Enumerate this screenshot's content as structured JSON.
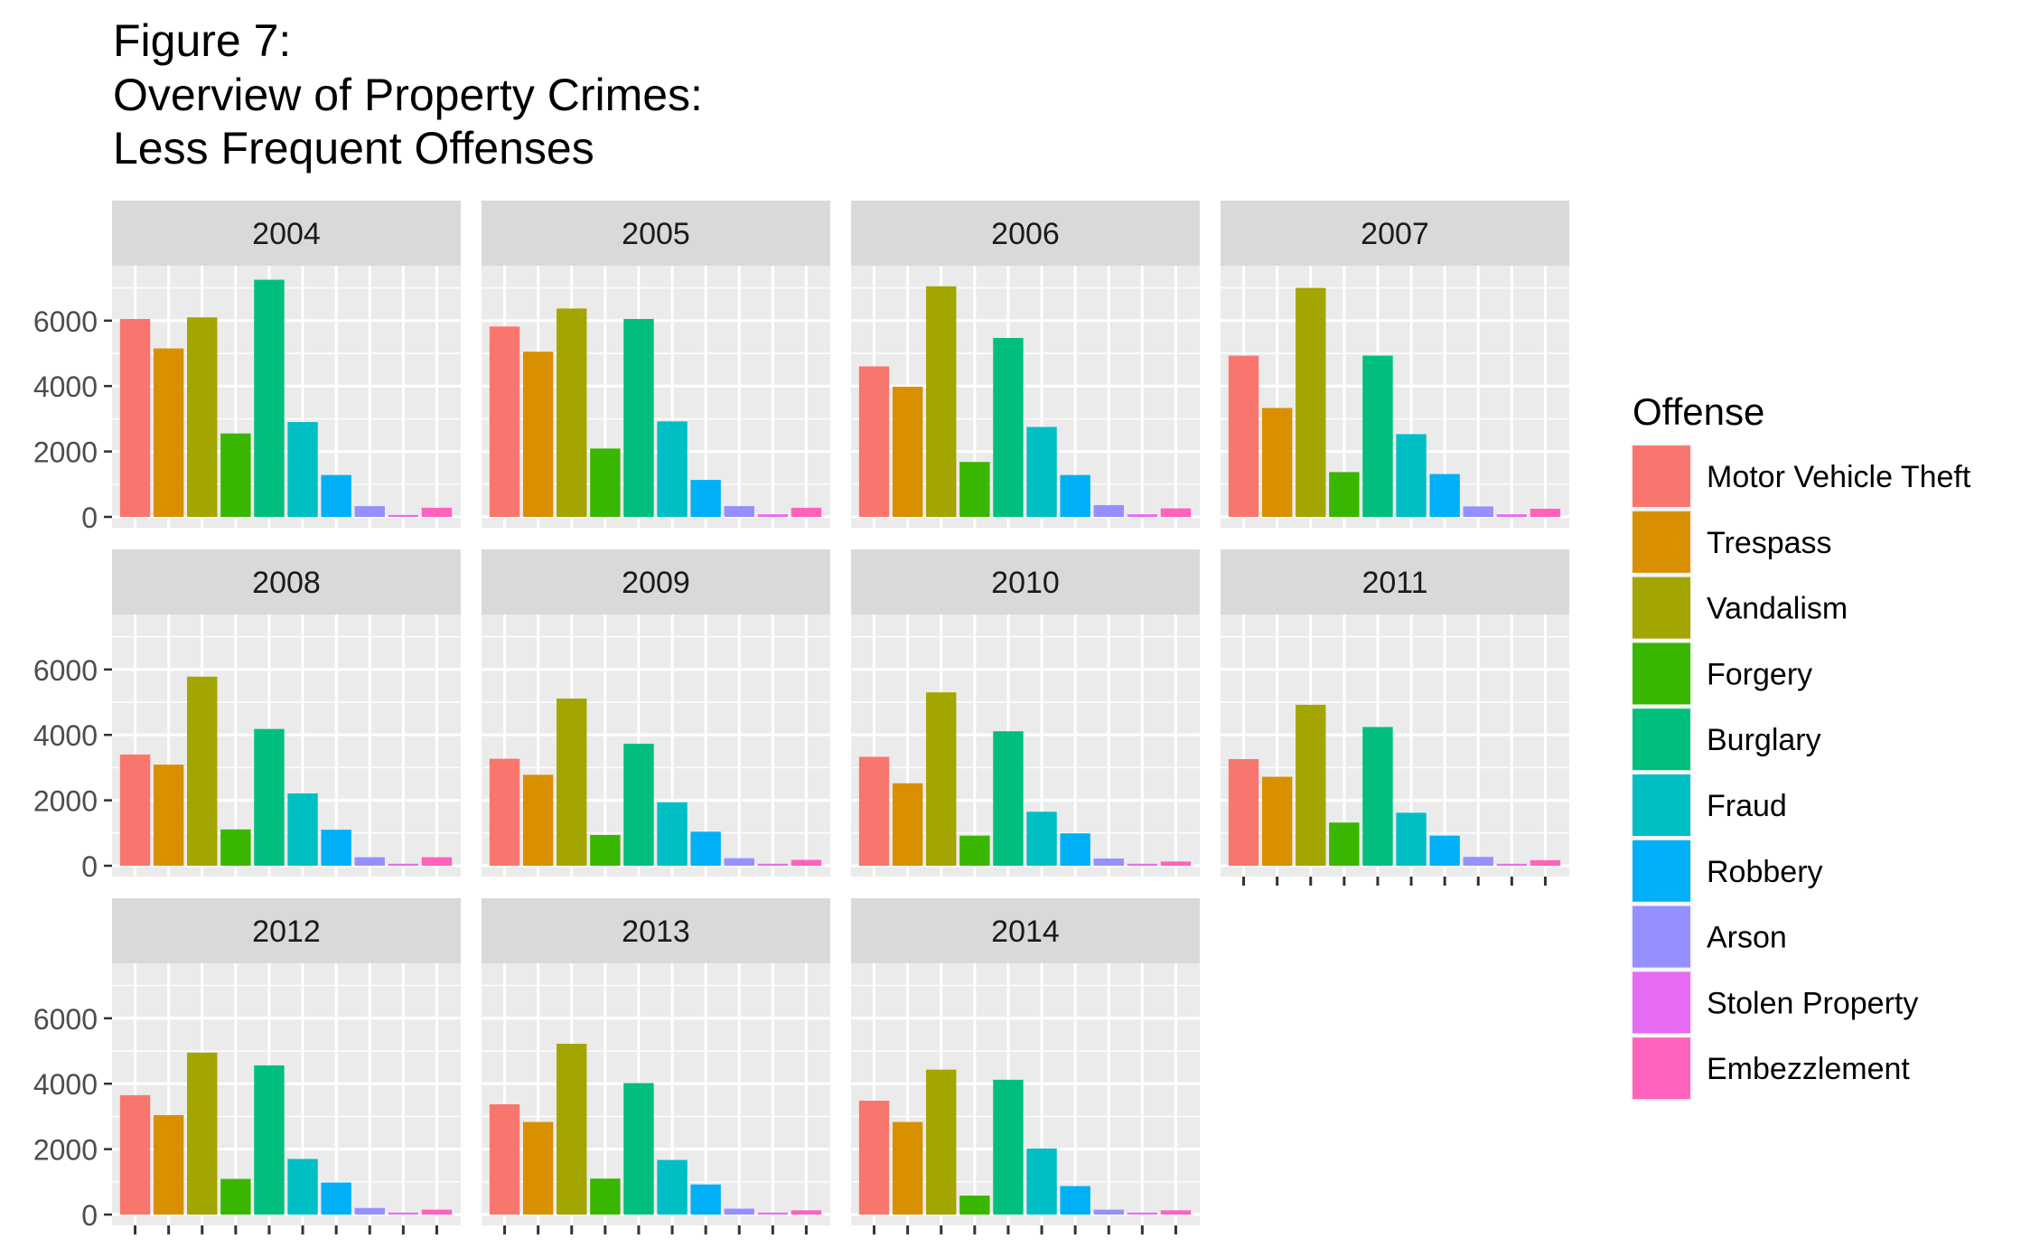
{
  "chart_data": {
    "type": "bar",
    "title": [
      "Figure 7:",
      "Overview of Property Crimes:",
      "Less Frequent Offenses"
    ],
    "legend": {
      "title": "Offense",
      "position": "right"
    },
    "facet_by": "year",
    "categories": [
      "Motor Vehicle Theft",
      "Trespass",
      "Vandalism",
      "Forgery",
      "Burglary",
      "Fraud",
      "Robbery",
      "Arson",
      "Stolen Property",
      "Embezzlement"
    ],
    "colors": [
      "#F8766D",
      "#D89000",
      "#A3A500",
      "#39B600",
      "#00BF7D",
      "#00BFC4",
      "#00B0F6",
      "#9590FF",
      "#E76BF3",
      "#FF62BC"
    ],
    "ylim": [
      0,
      7600
    ],
    "yticks": [
      0,
      2000,
      4000,
      6000
    ],
    "ytick_labels": [
      "0",
      "2000",
      "4000",
      "6000"
    ],
    "xtick_labels": "none",
    "grid": true,
    "panel_background": "#EBEBEB",
    "strip_background": "#D9D9D9",
    "facets": [
      {
        "label": "2004",
        "values": [
          6050,
          5150,
          6100,
          2550,
          7250,
          2900,
          1280,
          330,
          60,
          280
        ]
      },
      {
        "label": "2005",
        "values": [
          5820,
          5050,
          6370,
          2090,
          6050,
          2920,
          1130,
          330,
          80,
          280
        ]
      },
      {
        "label": "2006",
        "values": [
          4600,
          3980,
          7050,
          1680,
          5470,
          2750,
          1280,
          360,
          80,
          260
        ]
      },
      {
        "label": "2007",
        "values": [
          4930,
          3330,
          7000,
          1370,
          4930,
          2530,
          1310,
          320,
          80,
          250
        ]
      },
      {
        "label": "2008",
        "values": [
          3400,
          3090,
          5780,
          1110,
          4180,
          2210,
          1100,
          260,
          60,
          260
        ]
      },
      {
        "label": "2009",
        "values": [
          3270,
          2780,
          5110,
          940,
          3730,
          1940,
          1040,
          230,
          60,
          180
        ]
      },
      {
        "label": "2010",
        "values": [
          3330,
          2520,
          5300,
          920,
          4110,
          1650,
          990,
          220,
          60,
          130
        ]
      },
      {
        "label": "2011",
        "values": [
          3260,
          2720,
          4920,
          1320,
          4240,
          1620,
          920,
          270,
          60,
          170
        ]
      },
      {
        "label": "2012",
        "values": [
          3650,
          3040,
          4950,
          1090,
          4560,
          1700,
          980,
          200,
          60,
          150
        ]
      },
      {
        "label": "2013",
        "values": [
          3370,
          2830,
          5220,
          1100,
          4020,
          1670,
          920,
          180,
          60,
          130
        ]
      },
      {
        "label": "2014",
        "values": [
          3480,
          2830,
          4430,
          580,
          4120,
          2020,
          870,
          150,
          60,
          130
        ]
      }
    ]
  }
}
